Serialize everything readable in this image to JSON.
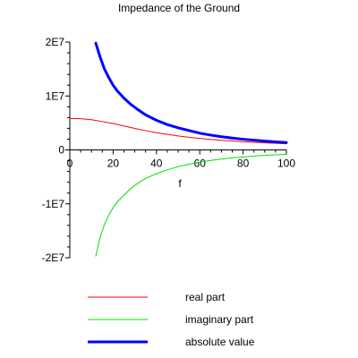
{
  "chart_data": {
    "type": "line",
    "title": "Impedance of the Ground",
    "xlabel": "f",
    "ylabel": "",
    "xlim": [
      0,
      100
    ],
    "ylim": [
      -20000000,
      20000000
    ],
    "xticks": [
      0,
      20,
      40,
      60,
      80,
      100
    ],
    "xtick_labels": [
      "0",
      "20",
      "40",
      "60",
      "80",
      "100"
    ],
    "yticks": [
      20000000,
      10000000,
      0,
      -10000000,
      -20000000
    ],
    "ytick_labels": [
      "2E7",
      "1E7",
      "0",
      "-1E7",
      "-2E7"
    ],
    "grid": false,
    "legend_position": "bottom",
    "series": [
      {
        "name": "real part",
        "color": "#ff0000",
        "line_width": 1,
        "x": [
          0,
          5,
          10,
          15,
          20,
          25,
          30,
          35,
          40,
          45,
          50,
          55,
          60,
          65,
          70,
          75,
          80,
          85,
          90,
          95,
          100
        ],
        "y": [
          5820000,
          5780000,
          5600000,
          5260000,
          4890000,
          4440000,
          3990000,
          3580000,
          3200000,
          2880000,
          2600000,
          2350000,
          2130000,
          1950000,
          1790000,
          1650000,
          1520000,
          1410000,
          1310000,
          1220000,
          1140000
        ]
      },
      {
        "name": "imaginary part",
        "color": "#00e000",
        "line_width": 1,
        "x": [
          12,
          14,
          16,
          18,
          20,
          22,
          25,
          28,
          31,
          35,
          40,
          45,
          50,
          55,
          60,
          65,
          70,
          75,
          80,
          85,
          90,
          95,
          100
        ],
        "y": [
          -19700000,
          -16200000,
          -13800000,
          -12100000,
          -10700000,
          -9600000,
          -8400000,
          -7200000,
          -6300000,
          -5300000,
          -4400000,
          -3700000,
          -3100000,
          -2650000,
          -2250000,
          -1950000,
          -1700000,
          -1480000,
          -1300000,
          -1150000,
          -1020000,
          -920000,
          -830000
        ]
      },
      {
        "name": "absolute value",
        "color": "#0000ff",
        "line_width": 3,
        "x": [
          12,
          14,
          16,
          18,
          20,
          22,
          25,
          28,
          31,
          35,
          40,
          45,
          50,
          55,
          60,
          65,
          70,
          75,
          80,
          85,
          90,
          95,
          100
        ],
        "y": [
          19800000,
          17200000,
          15000000,
          13400000,
          12000000,
          10900000,
          9600000,
          8500000,
          7600000,
          6500000,
          5500000,
          4700000,
          4100000,
          3600000,
          3100000,
          2750000,
          2450000,
          2200000,
          1980000,
          1800000,
          1640000,
          1500000,
          1370000
        ]
      }
    ]
  }
}
